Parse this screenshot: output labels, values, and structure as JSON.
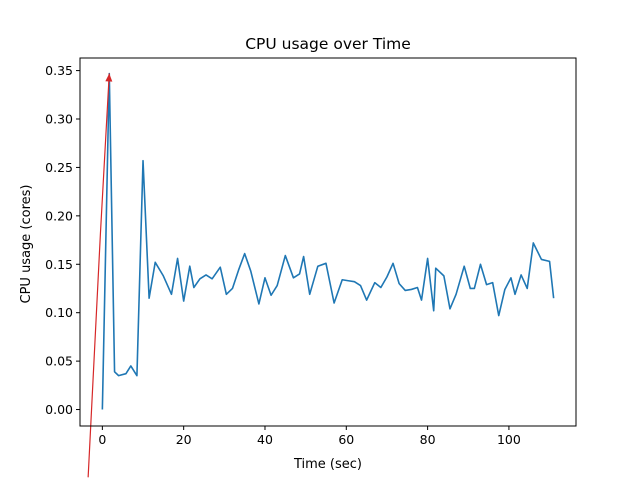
{
  "chart_data": {
    "type": "line",
    "title": "CPU usage over Time",
    "xlabel": "Time (sec)",
    "ylabel": "CPU usage (cores)",
    "xlim": [
      -5.5,
      116.5
    ],
    "ylim": [
      -0.017,
      0.363
    ],
    "xticks": [
      0,
      20,
      40,
      60,
      80,
      100
    ],
    "xtick_labels": [
      "0",
      "20",
      "40",
      "60",
      "80",
      "100"
    ],
    "yticks": [
      0.0,
      0.05,
      0.1,
      0.15,
      0.2,
      0.25,
      0.3,
      0.35
    ],
    "ytick_labels": [
      "0.00",
      "0.05",
      "0.10",
      "0.15",
      "0.20",
      "0.25",
      "0.30",
      "0.35"
    ],
    "grid": false,
    "series": [
      {
        "color": "#1f77b4",
        "x": [
          0,
          1.7,
          3,
          4,
          5.8,
          7,
          8.5,
          10,
          11.5,
          13,
          15,
          17,
          18.5,
          20,
          21.5,
          22.5,
          24,
          25.5,
          27,
          29,
          30.5,
          32,
          33.5,
          35,
          36.5,
          38.5,
          40,
          41.5,
          43,
          45,
          47,
          48.5,
          49.5,
          51,
          53,
          55,
          57,
          59,
          60.5,
          62,
          63.5,
          65,
          67,
          68.5,
          70,
          71.5,
          73,
          74.5,
          76,
          77.5,
          78.5,
          80,
          81.5,
          82,
          84,
          85.5,
          87,
          89,
          90.5,
          91.5,
          93,
          94.5,
          96,
          97.5,
          99,
          100.5,
          101.5,
          103,
          104.5,
          106,
          108,
          110,
          111
        ],
        "values": [
          0.0,
          0.347,
          0.039,
          0.035,
          0.037,
          0.045,
          0.035,
          0.257,
          0.115,
          0.152,
          0.138,
          0.119,
          0.156,
          0.112,
          0.148,
          0.126,
          0.135,
          0.139,
          0.135,
          0.147,
          0.119,
          0.125,
          0.144,
          0.161,
          0.143,
          0.109,
          0.136,
          0.118,
          0.128,
          0.159,
          0.136,
          0.14,
          0.158,
          0.119,
          0.148,
          0.151,
          0.11,
          0.134,
          0.133,
          0.132,
          0.128,
          0.113,
          0.131,
          0.126,
          0.137,
          0.151,
          0.13,
          0.123,
          0.124,
          0.126,
          0.113,
          0.156,
          0.102,
          0.146,
          0.138,
          0.104,
          0.119,
          0.148,
          0.125,
          0.125,
          0.15,
          0.129,
          0.131,
          0.097,
          0.124,
          0.136,
          0.119,
          0.139,
          0.125,
          0.172,
          0.155,
          0.153,
          0.115
        ]
      }
    ],
    "annotation": {
      "type": "arrow",
      "color": "#d62728",
      "from": [
        -3.5,
        -0.07
      ],
      "path": [
        [
          -0.5,
          0.18
        ],
        [
          1.7,
          0.347
        ]
      ]
    }
  }
}
